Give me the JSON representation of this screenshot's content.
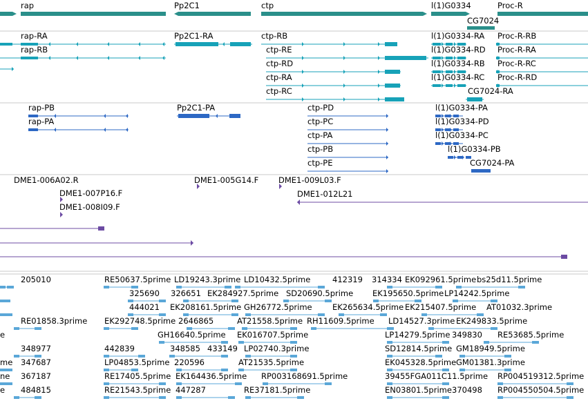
{
  "colors": {
    "gene": "#2a8f8a",
    "transcript": "#17a2b8",
    "protein": "#2d68c4",
    "clone": "#6c4ba3",
    "est": "#5aa7d8",
    "divider": "#c8c8c8"
  },
  "tracks": {
    "genes": [
      {
        "label": "rap"
      },
      {
        "label": "Pp2C1"
      },
      {
        "label": "ctp"
      },
      {
        "label": "l(1)G0334"
      },
      {
        "label": "CG7024"
      },
      {
        "label": "Proc-R"
      }
    ],
    "transcripts": [
      {
        "label": "rap-RA"
      },
      {
        "label": "rap-RB"
      },
      {
        "label": "Pp2C1-RA"
      },
      {
        "label": "ctp-RB"
      },
      {
        "label": "ctp-RE"
      },
      {
        "label": "ctp-RD"
      },
      {
        "label": "ctp-RA"
      },
      {
        "label": "ctp-RC"
      },
      {
        "label": "l(1)G0334-RA"
      },
      {
        "label": "l(1)G0334-RD"
      },
      {
        "label": "l(1)G0334-RB"
      },
      {
        "label": "l(1)G0334-RC"
      },
      {
        "label": "CG7024-RA"
      },
      {
        "label": "Proc-R-RB"
      },
      {
        "label": "Proc-R-RA"
      },
      {
        "label": "Proc-R-RC"
      },
      {
        "label": "Proc-R-RD"
      }
    ],
    "proteins": [
      {
        "label": "rap-PB"
      },
      {
        "label": "rap-PA"
      },
      {
        "label": "Pp2C1-PA"
      },
      {
        "label": "ctp-PD"
      },
      {
        "label": "ctp-PC"
      },
      {
        "label": "ctp-PA"
      },
      {
        "label": "ctp-PB"
      },
      {
        "label": "ctp-PE"
      },
      {
        "label": "l(1)G0334-PA"
      },
      {
        "label": "l(1)G0334-PD"
      },
      {
        "label": "l(1)G0334-PC"
      },
      {
        "label": "l(1)G0334-PB"
      },
      {
        "label": "CG7024-PA"
      }
    ],
    "clones": [
      {
        "label": "DME1-006A02.R"
      },
      {
        "label": "DME1-007P16.F"
      },
      {
        "label": "DME1-008I09.F"
      },
      {
        "label": "DME1-005G14.F"
      },
      {
        "label": "DME1-009L03.F"
      },
      {
        "label": "DME1-012L21"
      }
    ],
    "ests": [
      {
        "label": "205010"
      },
      {
        "label": "RE50637.5prime"
      },
      {
        "label": "LD19243.3prime"
      },
      {
        "label": "LD10432.5prime"
      },
      {
        "label": "412319"
      },
      {
        "label": "314334"
      },
      {
        "label": "EK092961.5prime"
      },
      {
        "label": "bs25d11.5prime"
      },
      {
        "label": "325690"
      },
      {
        "label": "326651"
      },
      {
        "label": "EK284927.5prime"
      },
      {
        "label": "SD20690.5prime"
      },
      {
        "label": "EK195650.5prime"
      },
      {
        "label": "LP14242.5prime"
      },
      {
        "label": "444021"
      },
      {
        "label": "EK208161.5prime"
      },
      {
        "label": "GH26772.5prime"
      },
      {
        "label": "EK265634.5prime"
      },
      {
        "label": "EK215407.5prime"
      },
      {
        "label": "AT01032.3prime"
      },
      {
        "label": "RE01858.3prime"
      },
      {
        "label": "EK292748.5prime"
      },
      {
        "label": "2646865"
      },
      {
        "label": "AT21558.5prime"
      },
      {
        "label": "RH11609.5prime"
      },
      {
        "label": "LD14527.3prime"
      },
      {
        "label": "EK249833.5prime"
      },
      {
        "label": "GH16640.5prime"
      },
      {
        "label": "EK016707.5prime"
      },
      {
        "label": "LP14279.5prime"
      },
      {
        "label": "349830"
      },
      {
        "label": "RE53685.5prime"
      },
      {
        "label": "348977"
      },
      {
        "label": "442839"
      },
      {
        "label": "348585"
      },
      {
        "label": "433149"
      },
      {
        "label": "LP02740.3prime"
      },
      {
        "label": "SD12814.5prime"
      },
      {
        "label": "GM18949.5prime"
      },
      {
        "label": "347687"
      },
      {
        "label": "LP04853.5prime"
      },
      {
        "label": "220596"
      },
      {
        "label": "AT21535.5prime"
      },
      {
        "label": "EK045328.5prime"
      },
      {
        "label": "GM01381.3prime"
      },
      {
        "label": "367187"
      },
      {
        "label": "RE17405.5prime"
      },
      {
        "label": "EK164436.5prime"
      },
      {
        "label": "RP003168691.5prime"
      },
      {
        "label": "39455FGA011C11.5prime"
      },
      {
        "label": "RP004519312.5prime"
      },
      {
        "label": "484815"
      },
      {
        "label": "RE21543.5prime"
      },
      {
        "label": "447287"
      },
      {
        "label": "RE37181.5prime"
      },
      {
        "label": "EN03801.5prime"
      },
      {
        "label": "370498"
      },
      {
        "label": "RP004550504.5prime"
      },
      {
        "label": "e"
      },
      {
        "label": "me"
      },
      {
        "label": "ne"
      },
      {
        "label": "e"
      }
    ]
  }
}
